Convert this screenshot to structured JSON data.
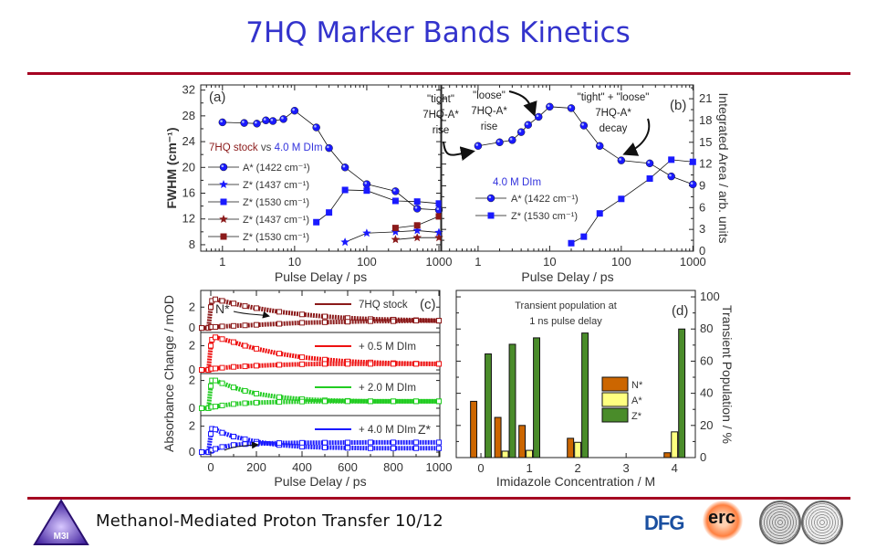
{
  "slide": {
    "title": "7HQ Marker Bands Kinetics",
    "footer": "Methanol-Mediated Proton Transfer 10/12",
    "logos": [
      "M3I",
      "DFG",
      "erc"
    ],
    "colors": {
      "title": "#3333cc",
      "rule": "#a50021"
    }
  },
  "chart_data": [
    {
      "id": "a",
      "type": "line",
      "panel_label": "(a)",
      "xlabel": "Pulse Delay / ps",
      "ylabel": "FWHM (cm⁻¹)",
      "xscale": "log",
      "xlim": [
        0.5,
        1060
      ],
      "ylim": [
        7,
        32.8
      ],
      "xticks": [
        "1",
        "10",
        "100",
        "1000"
      ],
      "yticks": [
        "8",
        "12",
        "16",
        "20",
        "24",
        "28",
        "32"
      ],
      "legend_title": [
        "7HQ stock",
        " vs ",
        "4.0 M DIm"
      ],
      "series": [
        {
          "name": "A* (1422 cm⁻¹)",
          "marker": "circle",
          "color": "#1a1aff",
          "x": [
            1,
            2,
            3,
            4,
            5,
            7,
            10,
            20,
            30,
            50,
            100,
            250,
            500,
            1000
          ],
          "y": [
            27,
            26.9,
            26.8,
            27.3,
            27.2,
            27.5,
            28.8,
            26.2,
            23,
            20,
            17.4,
            16.3,
            13.6,
            13.4
          ]
        },
        {
          "name": "Z* (1437 cm⁻¹)",
          "marker": "star",
          "color": "#1a1aff",
          "x": [
            50,
            100,
            250,
            500,
            1000
          ],
          "y": [
            8.4,
            9.8,
            10,
            10.2,
            9.9
          ]
        },
        {
          "name": "Z* (1530 cm⁻¹)",
          "marker": "square",
          "color": "#1a1aff",
          "x": [
            20,
            30,
            50,
            100,
            250,
            500,
            1000
          ],
          "y": [
            11.5,
            13,
            16.5,
            16.4,
            14.8,
            14.7,
            14.4
          ]
        },
        {
          "name": "Z* (1437 cm⁻¹)",
          "marker": "star",
          "color": "#8b1a1a",
          "x": [
            250,
            500,
            1000
          ],
          "y": [
            8.8,
            9.1,
            9.1
          ]
        },
        {
          "name": "Z* (1530 cm⁻¹)",
          "marker": "square",
          "color": "#8b1a1a",
          "x": [
            250,
            500,
            1000
          ],
          "y": [
            10.6,
            11,
            12.4
          ]
        }
      ]
    },
    {
      "id": "b",
      "type": "line",
      "panel_label": "(b)",
      "xlabel": "Pulse Delay / ps",
      "ylabel": "Integrated Area / arb. units",
      "xscale": "log",
      "xlim": [
        0.31,
        1020
      ],
      "ylim": [
        0,
        22.9
      ],
      "xticks": [
        "1",
        "10",
        "100",
        "1000"
      ],
      "yticks": [
        "0",
        "3",
        "6",
        "9",
        "12",
        "15",
        "18",
        "21"
      ],
      "legend_title": "4.0 M DIm",
      "annotations": [
        [
          "\"tight\"",
          "7HQ-A*",
          "rise"
        ],
        [
          "\"loose\"",
          "7HQ-A*",
          "rise"
        ],
        [
          "\"tight\" + \"loose\"",
          "7HQ-A*",
          "decay"
        ]
      ],
      "series": [
        {
          "name": "A* (1422 cm⁻¹)",
          "marker": "circle",
          "color": "#1a1aff",
          "x": [
            1,
            2,
            3,
            4,
            5,
            7,
            10,
            20,
            30,
            50,
            100,
            250,
            500,
            1000
          ],
          "y": [
            14.5,
            15,
            15.3,
            16.4,
            17.4,
            18.5,
            19.9,
            19.7,
            17.3,
            14.5,
            12.5,
            12.1,
            10.3,
            9.2
          ]
        },
        {
          "name": "Z* (1530 cm⁻¹)",
          "marker": "square",
          "color": "#1a1aff",
          "x": [
            20,
            30,
            50,
            100,
            250,
            500,
            1000
          ],
          "y": [
            1.1,
            2,
            5.2,
            7.2,
            10,
            12.6,
            12.3
          ]
        }
      ]
    },
    {
      "id": "c",
      "type": "line",
      "panel_label": "(c)",
      "xlabel": "Pulse Delay / ps",
      "ylabel": "Absorbance Change / mOD",
      "xlim": [
        -44,
        1004
      ],
      "xticks": [
        "0",
        "200",
        "400",
        "600",
        "800",
        "1000"
      ],
      "yticks": [
        "0",
        "2"
      ],
      "annotations": [
        "N*",
        "Z*"
      ],
      "x": [
        -40,
        -10,
        0,
        5,
        20,
        50,
        100,
        150,
        200,
        300,
        400,
        500,
        600,
        700,
        800,
        900,
        1000
      ],
      "panels": [
        {
          "name": "7HQ stock",
          "color": "#8b1a1a",
          "ylim": [
            -0.43,
            3.6
          ],
          "decay": [
            0,
            0,
            2.0,
            2.6,
            2.75,
            2.6,
            2.35,
            2.1,
            1.9,
            1.55,
            1.3,
            1.1,
            0.95,
            0.85,
            0.8,
            0.75,
            0.7
          ],
          "rise": [
            0,
            0,
            0.1,
            0.1,
            0.1,
            0.15,
            0.2,
            0.25,
            0.3,
            0.4,
            0.5,
            0.55,
            0.6,
            0.65,
            0.65,
            0.7,
            0.7
          ]
        },
        {
          "name": "+ 0.5 M DIm",
          "color": "#ee1111",
          "ylim": [
            -0.3,
            3.1
          ],
          "decay": [
            0,
            0,
            2.0,
            2.5,
            2.7,
            2.55,
            2.3,
            2.0,
            1.75,
            1.35,
            1.05,
            0.85,
            0.7,
            0.62,
            0.56,
            0.52,
            0.5
          ],
          "rise": [
            0,
            0,
            0.1,
            0.1,
            0.12,
            0.18,
            0.25,
            0.3,
            0.35,
            0.42,
            0.47,
            0.5,
            0.5,
            0.5,
            0.5,
            0.5,
            0.5
          ]
        },
        {
          "name": "+ 2.0 M DIm",
          "color": "#22cc22",
          "ylim": [
            -0.53,
            2.5
          ],
          "decay": [
            0,
            0,
            1.6,
            2.0,
            2.0,
            1.8,
            1.5,
            1.25,
            1.05,
            0.8,
            0.65,
            0.57,
            0.53,
            0.5,
            0.5,
            0.5,
            0.5
          ],
          "rise": [
            0,
            0,
            0.1,
            0.1,
            0.12,
            0.2,
            0.3,
            0.36,
            0.4,
            0.45,
            0.48,
            0.5,
            0.5,
            0.5,
            0.5,
            0.5,
            0.5
          ]
        },
        {
          "name": "+ 4.0 M DIm",
          "color": "#1a1aff",
          "ylim": [
            -0.35,
            2.82
          ],
          "decay": [
            0,
            0,
            1.4,
            1.8,
            1.75,
            1.5,
            1.2,
            1.0,
            0.8,
            0.55,
            0.42,
            0.36,
            0.33,
            0.3,
            0.3,
            0.3,
            0.3
          ],
          "rise": [
            0,
            0,
            0.1,
            0.15,
            0.25,
            0.4,
            0.55,
            0.62,
            0.65,
            0.7,
            0.72,
            0.73,
            0.74,
            0.75,
            0.75,
            0.75,
            0.75
          ]
        }
      ]
    },
    {
      "id": "d",
      "type": "bar",
      "panel_label": "(d)",
      "title": [
        "Transient population at",
        "1 ns pulse delay"
      ],
      "xlabel": "Imidazole Concentration / M",
      "ylabel": "Transient Population / %",
      "xlim": [
        -0.51,
        4.43
      ],
      "ylim": [
        0,
        104
      ],
      "xticks": [
        "0",
        "1",
        "2",
        "3",
        "4"
      ],
      "yticks": [
        "0",
        "20",
        "40",
        "60",
        "80",
        "100"
      ],
      "categories": [
        0,
        0.5,
        1,
        2,
        4
      ],
      "legend_placement": "center-right",
      "series": [
        {
          "name": "N*",
          "color": "#cc6600",
          "values": [
            35,
            25,
            20,
            12,
            3
          ]
        },
        {
          "name": "A*",
          "color": "#ffff80",
          "values": [
            0,
            4,
            4.5,
            9.5,
            16
          ]
        },
        {
          "name": "Z*",
          "color": "#4a8c2a",
          "values": [
            64.5,
            70.5,
            74.5,
            77.5,
            80
          ]
        }
      ]
    }
  ]
}
